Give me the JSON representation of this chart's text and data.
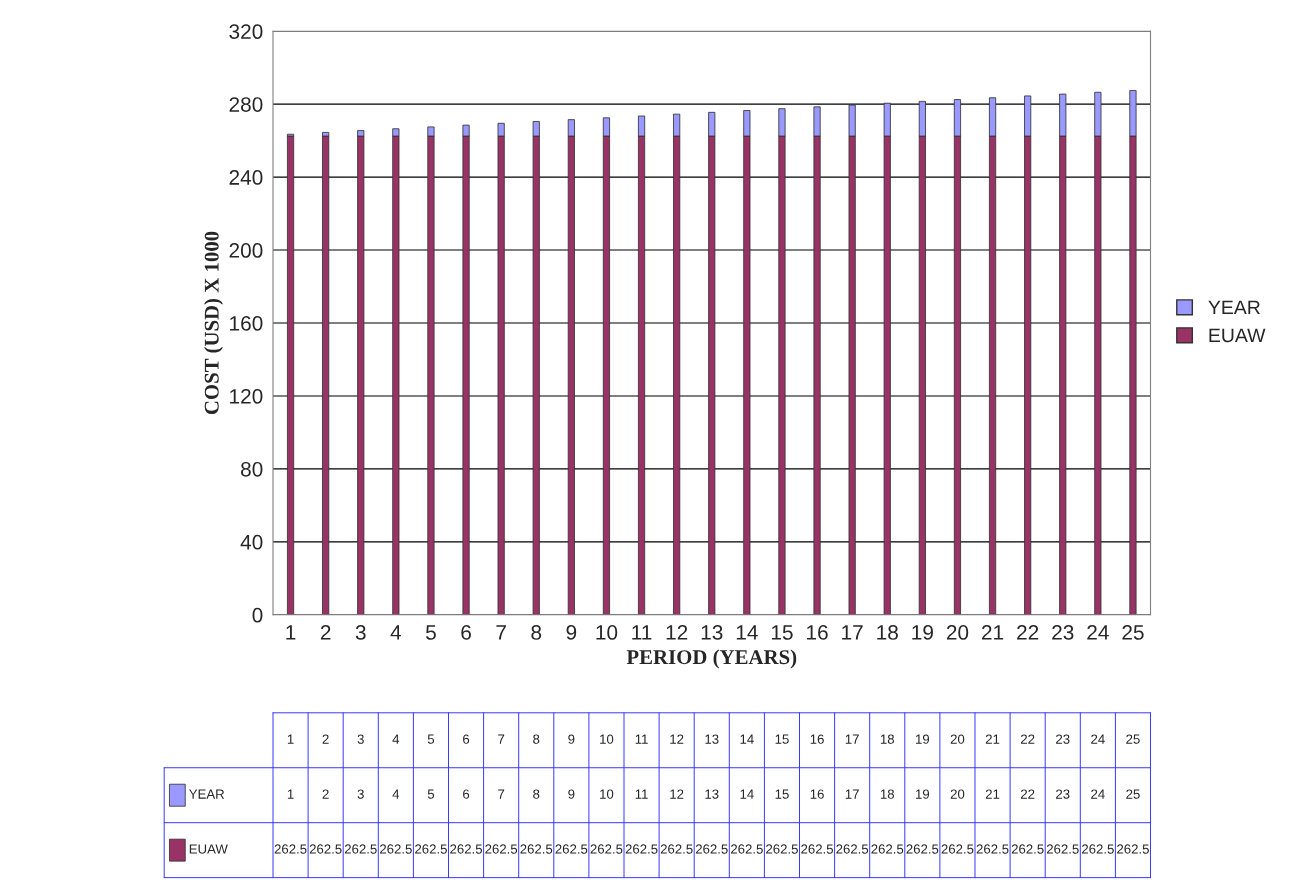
{
  "chart_data": {
    "type": "bar",
    "stacked": true,
    "xlabel": "PERIOD (YEARS)",
    "ylabel": "COST (USD) X 1000",
    "categories": [
      "1",
      "2",
      "3",
      "4",
      "5",
      "6",
      "7",
      "8",
      "9",
      "10",
      "11",
      "12",
      "13",
      "14",
      "15",
      "16",
      "17",
      "18",
      "19",
      "20",
      "21",
      "22",
      "23",
      "24",
      "25"
    ],
    "series": [
      {
        "name": "EUAW",
        "color": "#993366",
        "values": [
          262.5,
          262.5,
          262.5,
          262.5,
          262.5,
          262.5,
          262.5,
          262.5,
          262.5,
          262.5,
          262.5,
          262.5,
          262.5,
          262.5,
          262.5,
          262.5,
          262.5,
          262.5,
          262.5,
          262.5,
          262.5,
          262.5,
          262.5,
          262.5,
          262.5
        ]
      },
      {
        "name": "YEAR",
        "color": "#9999ff",
        "values": [
          1,
          2,
          3,
          4,
          5,
          6,
          7,
          8,
          9,
          10,
          11,
          12,
          13,
          14,
          15,
          16,
          17,
          18,
          19,
          20,
          21,
          22,
          23,
          24,
          25
        ]
      }
    ],
    "ylim": [
      0,
      320
    ],
    "yticks": [
      0,
      40,
      80,
      120,
      160,
      200,
      240,
      280,
      320
    ],
    "grid": "y",
    "legend": "right",
    "data_labels": true
  }
}
